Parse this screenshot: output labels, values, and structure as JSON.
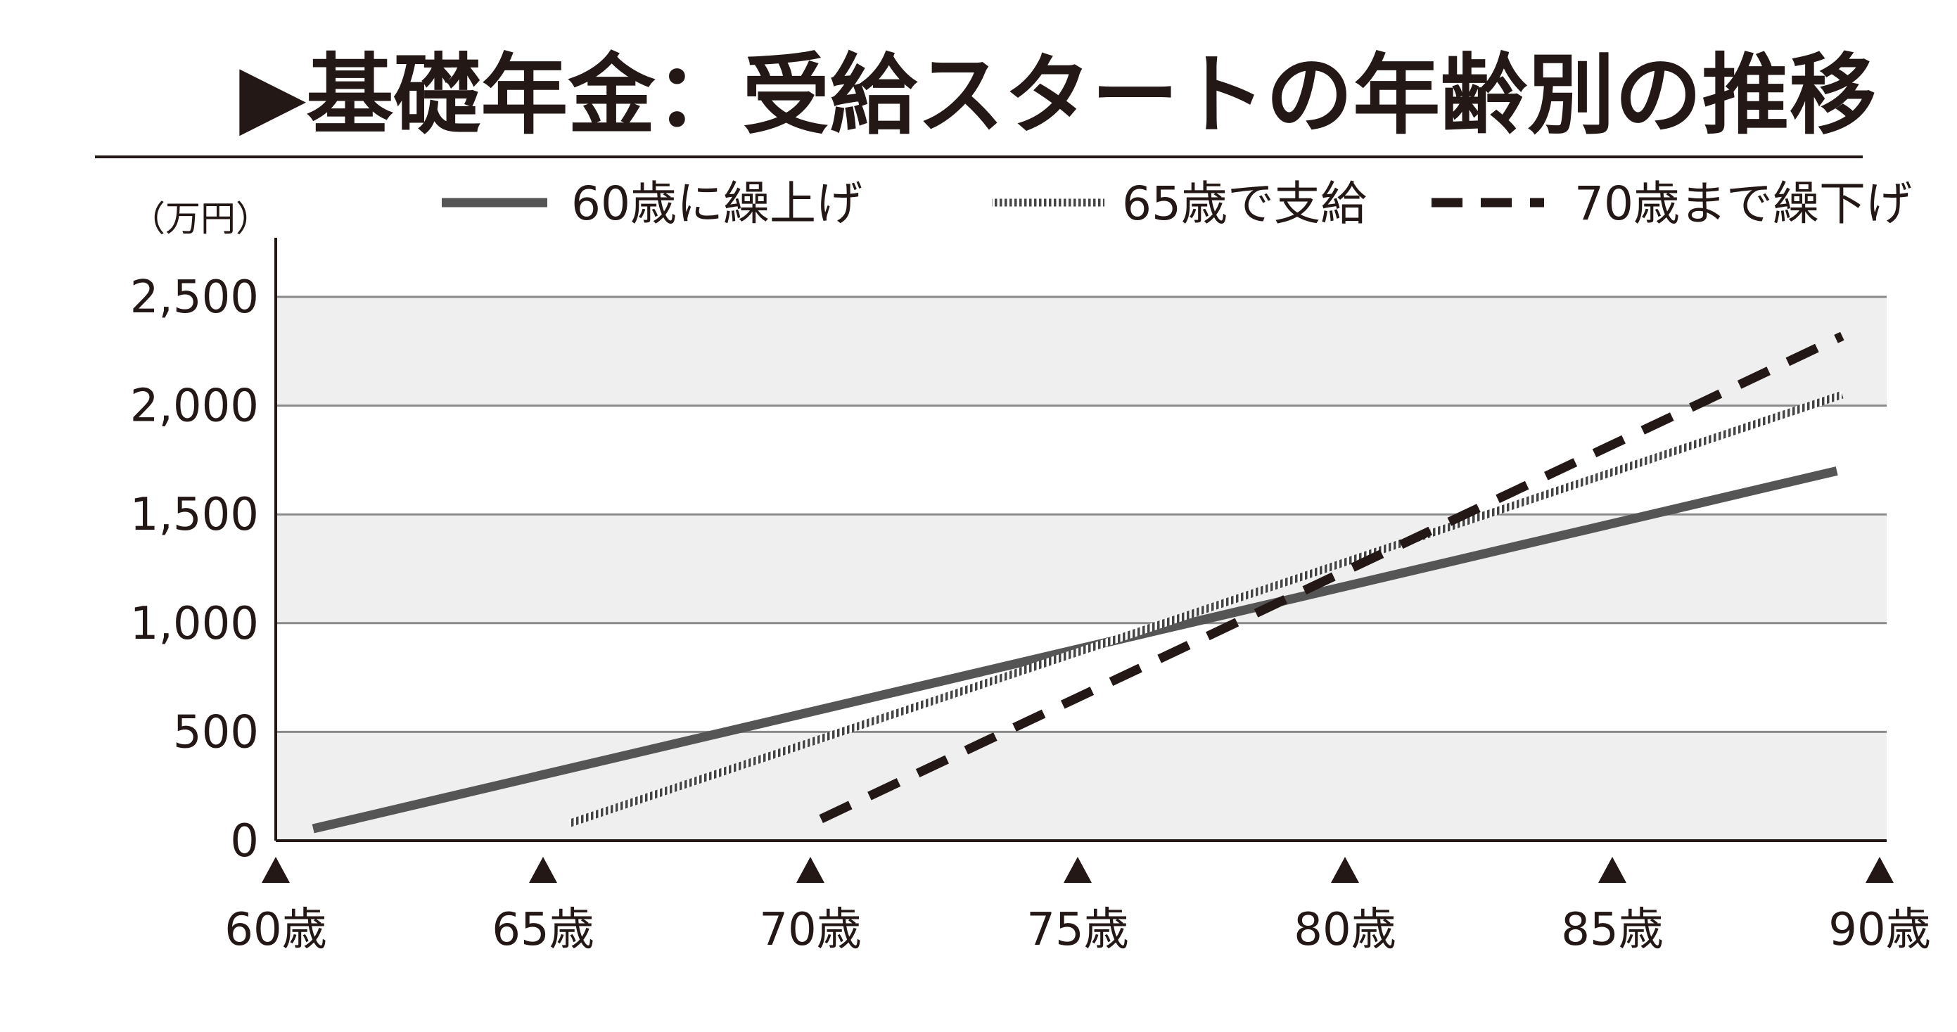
{
  "title": "▶基礎年金：受給スタートの年齢別の推移",
  "chart_data": {
    "type": "line",
    "title": "▶基礎年金：受給スタートの年齢別の推移",
    "ylabel": "（万円）",
    "xlabel": "",
    "ylim": [
      0,
      2500
    ],
    "xlim": [
      60,
      90
    ],
    "yticks": [
      {
        "value": 0,
        "label": "0"
      },
      {
        "value": 500,
        "label": "500"
      },
      {
        "value": 1000,
        "label": "1,000"
      },
      {
        "value": 1500,
        "label": "1,500"
      },
      {
        "value": 2000,
        "label": "2,000"
      },
      {
        "value": 2500,
        "label": "2,500"
      }
    ],
    "xticks": [
      {
        "value": 60,
        "label": "60歳"
      },
      {
        "value": 65,
        "label": "65歳"
      },
      {
        "value": 70,
        "label": "70歳"
      },
      {
        "value": 75,
        "label": "75歳"
      },
      {
        "value": 80,
        "label": "80歳"
      },
      {
        "value": 85,
        "label": "85歳"
      },
      {
        "value": 90,
        "label": "90歳"
      }
    ],
    "grid": true,
    "banded_background": true,
    "legend_position": "top",
    "series": [
      {
        "name": "60歳に繰上げ",
        "style": "solid",
        "color": "#555555",
        "x": [
          60.7,
          89.2
        ],
        "y": [
          55,
          1700
        ]
      },
      {
        "name": "65歳で支給",
        "style": "dotted",
        "color": "#555555",
        "x": [
          65.5,
          89.3
        ],
        "y": [
          80,
          2050
        ]
      },
      {
        "name": "70歳まで繰下げ",
        "style": "dashed",
        "color": "#231815",
        "x": [
          70.2,
          89.3
        ],
        "y": [
          100,
          2320
        ]
      }
    ]
  }
}
